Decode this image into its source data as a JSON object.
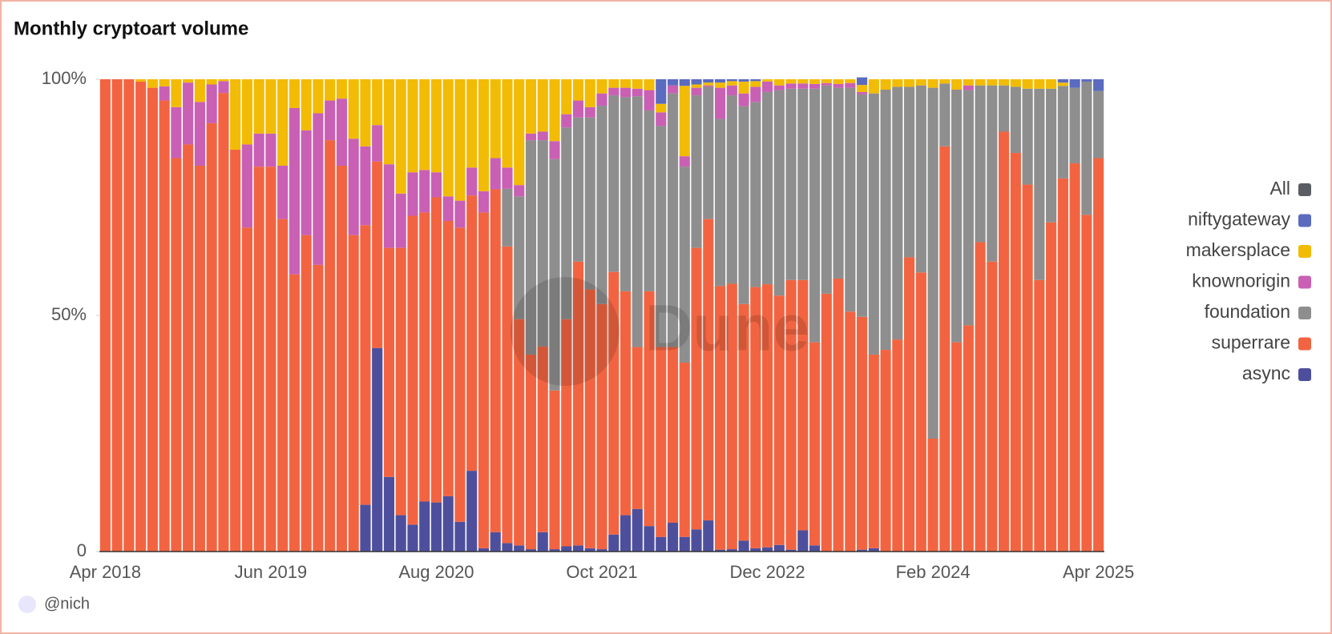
{
  "chart_data": {
    "type": "stacked_percent_bar",
    "title": "Monthly cryptoart volume",
    "watermark": "Dune",
    "author": "@nich",
    "legend_toggle": {
      "label": "All",
      "color": "#5a5d63"
    },
    "legend_position": "right",
    "categories": [
      "Apr 2018",
      null,
      null,
      null,
      null,
      null,
      null,
      null,
      null,
      null,
      null,
      null,
      null,
      null,
      "Jun 2019",
      null,
      null,
      null,
      null,
      null,
      null,
      null,
      null,
      null,
      null,
      null,
      null,
      null,
      "Aug 2020",
      null,
      null,
      null,
      null,
      null,
      null,
      null,
      null,
      null,
      null,
      null,
      null,
      null,
      "Oct 2021",
      null,
      null,
      null,
      null,
      null,
      null,
      null,
      null,
      null,
      null,
      null,
      null,
      null,
      "Dec 2022",
      null,
      null,
      null,
      null,
      null,
      null,
      null,
      null,
      null,
      null,
      null,
      null,
      null,
      "Feb 2024",
      null,
      null,
      null,
      null,
      null,
      null,
      null,
      null,
      null,
      null,
      null,
      null,
      null,
      "Apr 2025"
    ],
    "ylim": [
      0,
      100
    ],
    "yticks": [
      0,
      {
        "value": 50,
        "label": "50%"
      },
      {
        "value": 100,
        "label": "100%"
      }
    ],
    "series": [
      {
        "name": "async",
        "color": "#4e4f9c",
        "values": [
          0,
          0,
          0,
          0,
          0,
          0,
          0,
          0,
          0,
          0,
          0,
          0,
          0,
          0,
          0,
          0,
          0,
          0,
          0,
          0,
          0,
          0,
          9.9,
          43.1,
          15.8,
          7.7,
          5.7,
          10.6,
          10.4,
          11.7,
          6.3,
          17.1,
          0.7,
          4.1,
          1.8,
          1.3,
          0.5,
          4.1,
          0.5,
          1.1,
          1.3,
          0.7,
          0.5,
          3.6,
          7.7,
          9,
          5.4,
          3.1,
          6.1,
          3.1,
          4.7,
          6.6,
          0.4,
          0.5,
          2.3,
          0.7,
          0.9,
          1.4,
          0.4,
          4.5,
          1.3,
          0,
          0,
          0,
          0.4,
          0.7,
          0,
          0,
          0,
          0,
          0,
          0,
          0,
          0,
          0,
          0,
          0,
          0,
          0,
          0,
          0,
          0,
          0,
          0,
          0
        ]
      },
      {
        "name": "superrare",
        "color": "#f26441",
        "values": [
          100,
          100,
          100,
          99.5,
          98.2,
          95.5,
          83.3,
          86.2,
          81.7,
          90.7,
          97.1,
          85.1,
          68.6,
          81.5,
          81.5,
          70.4,
          58.7,
          67,
          60.7,
          87.1,
          81.7,
          67,
          59.2,
          39.5,
          48.5,
          56.6,
          65.4,
          61.2,
          64.6,
          58.3,
          62.3,
          58.3,
          71.1,
          72.6,
          62.8,
          47.9,
          41.2,
          39.3,
          33.6,
          48.1,
          60.1,
          54.8,
          51.9,
          55.6,
          47.4,
          34.3,
          49.7,
          40.2,
          37.2,
          36.9,
          59.6,
          63.8,
          55.8,
          56.2,
          50.1,
          55.3,
          55.7,
          52.8,
          57.1,
          53,
          43,
          54.6,
          57.8,
          50.8,
          49.3,
          41,
          42.7,
          44.9,
          62.3,
          59.1,
          23.9,
          85.8,
          44.3,
          47.9,
          65.5,
          61.4,
          88.9,
          84.4,
          77.7,
          57.5,
          69.7,
          79,
          82.2,
          71.3,
          83.3
        ]
      },
      {
        "name": "foundation",
        "color": "#8e8e8e",
        "values": [
          0,
          0,
          0,
          0,
          0,
          0,
          0,
          0,
          0,
          0,
          0,
          0,
          0,
          0,
          0,
          0,
          0,
          0,
          0,
          0,
          0,
          0,
          0,
          0,
          0,
          0,
          0,
          0,
          0,
          0,
          0,
          0,
          0,
          0,
          12.2,
          26,
          45.4,
          43.7,
          49,
          40.6,
          30.5,
          36.4,
          42,
          37.4,
          41.1,
          53.1,
          38.3,
          46.8,
          53.7,
          41.5,
          32.3,
          28,
          35.4,
          39.9,
          41.9,
          39.2,
          40.7,
          43.5,
          40.5,
          40.5,
          53.7,
          44.1,
          40.4,
          47.4,
          47.1,
          55.3,
          55.1,
          53.5,
          36.1,
          39.6,
          74.3,
          13.3,
          53.5,
          49.8,
          33.2,
          37.3,
          9.8,
          14,
          20.3,
          40.5,
          28.3,
          19.6,
          16,
          28.2,
          14.2
        ]
      },
      {
        "name": "knownorigin",
        "color": "#c960b4",
        "values": [
          0,
          0,
          0,
          0,
          0,
          3,
          10.8,
          13.1,
          13.5,
          8.2,
          2.5,
          0,
          17.6,
          7,
          7,
          11.3,
          35.2,
          22.2,
          32.1,
          8.4,
          14.2,
          20.4,
          16.7,
          7.7,
          17.7,
          11.5,
          9.2,
          9,
          5.3,
          5.2,
          5.7,
          5.9,
          4.5,
          6.6,
          4.5,
          2.4,
          1.4,
          1.8,
          3.8,
          2.8,
          3.6,
          2.2,
          2.6,
          1.6,
          2,
          1.6,
          4.3,
          2.9,
          1.7,
          2.2,
          1.6,
          0.3,
          6.6,
          2.1,
          2.7,
          3.2,
          2.2,
          1,
          1.1,
          1.1,
          1,
          0.5,
          0.8,
          1,
          0.5,
          0,
          0,
          0,
          0,
          0,
          0,
          0,
          0,
          1,
          0,
          0,
          0,
          0,
          0,
          0,
          0,
          0,
          0,
          0,
          0
        ]
      },
      {
        "name": "makersplace",
        "color": "#f2bb05",
        "values": [
          0,
          0,
          0,
          0.5,
          1.8,
          1.5,
          5.9,
          0.7,
          4.8,
          1.1,
          0.4,
          14.9,
          13.8,
          11.5,
          11.5,
          18.3,
          6.1,
          10.8,
          7.2,
          4.5,
          4.1,
          12.6,
          14.2,
          9.7,
          18,
          24.2,
          19.7,
          19.2,
          19.7,
          24.8,
          25.7,
          18.7,
          23.7,
          16.7,
          18.7,
          22.4,
          11.5,
          11.1,
          13.1,
          7.4,
          4.5,
          5.9,
          3,
          1.8,
          1.8,
          2,
          2.3,
          1.8,
          0,
          14.9,
          0.7,
          0.6,
          1.1,
          0.9,
          2.5,
          1.2,
          0.5,
          1.3,
          0.9,
          0.9,
          1,
          0.8,
          1,
          0.8,
          1.5,
          3,
          2.2,
          1.6,
          1.6,
          1.3,
          1.8,
          0.9,
          2.2,
          1.3,
          1.3,
          1.3,
          1.3,
          1.6,
          2,
          2,
          2,
          0.7,
          0,
          0,
          0
        ]
      },
      {
        "name": "niftygateway",
        "color": "#5b6bc0",
        "values": [
          0,
          0,
          0,
          0,
          0,
          0,
          0,
          0,
          0,
          0,
          0,
          0,
          0,
          0,
          0,
          0,
          0,
          0,
          0,
          0,
          0,
          0,
          0,
          0,
          0,
          0,
          0,
          0,
          0,
          0,
          0,
          0,
          0,
          0,
          0,
          0,
          0,
          0,
          0,
          0,
          0,
          0,
          0,
          0,
          0,
          0,
          0,
          5.2,
          1.3,
          1.4,
          1.1,
          0.7,
          0.7,
          0.4,
          0.5,
          0.4,
          0,
          0,
          0,
          0,
          0,
          0,
          0,
          0,
          1.6,
          0,
          0,
          0,
          0,
          0,
          0,
          0,
          0,
          0,
          0,
          0,
          0,
          0,
          0,
          0,
          0,
          0.7,
          1.8,
          0.5,
          2.5
        ]
      }
    ]
  }
}
